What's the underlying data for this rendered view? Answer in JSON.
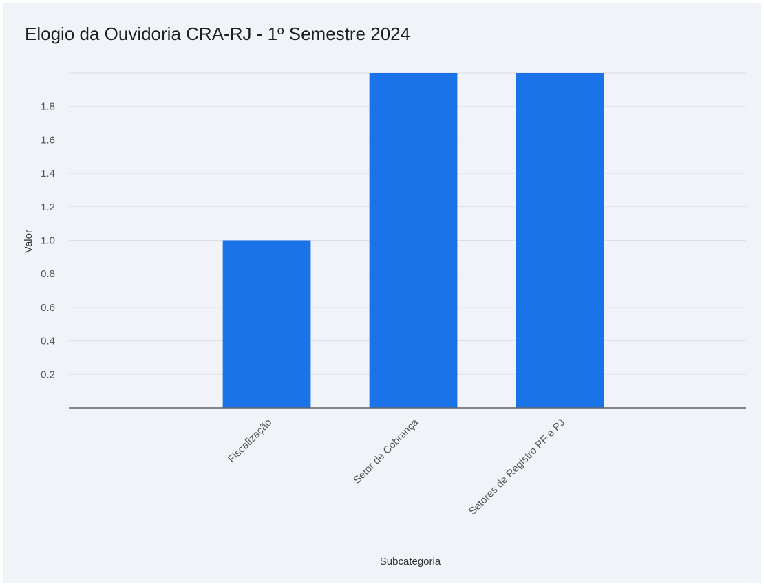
{
  "chart_data": {
    "type": "bar",
    "title": "Elogio da Ouvidoria CRA-RJ - 1º Semestre 2024",
    "xlabel": "Subcategoria",
    "ylabel": "Valor",
    "categories": [
      "Fiscalização",
      "Setor de Cobrança",
      "Setores de Registro PF e PJ"
    ],
    "values": [
      1,
      2,
      2
    ],
    "ylim": [
      0,
      2
    ],
    "yticks": [
      "0.2",
      "0.4",
      "0.6",
      "0.8",
      "1.0",
      "1.2",
      "1.4",
      "1.6",
      "1.8"
    ],
    "grid": true,
    "colors": {
      "bar": "#1a73e8",
      "grid": "#dde1e6",
      "axis": "#5f6368",
      "background": "#f0f4f9"
    }
  }
}
